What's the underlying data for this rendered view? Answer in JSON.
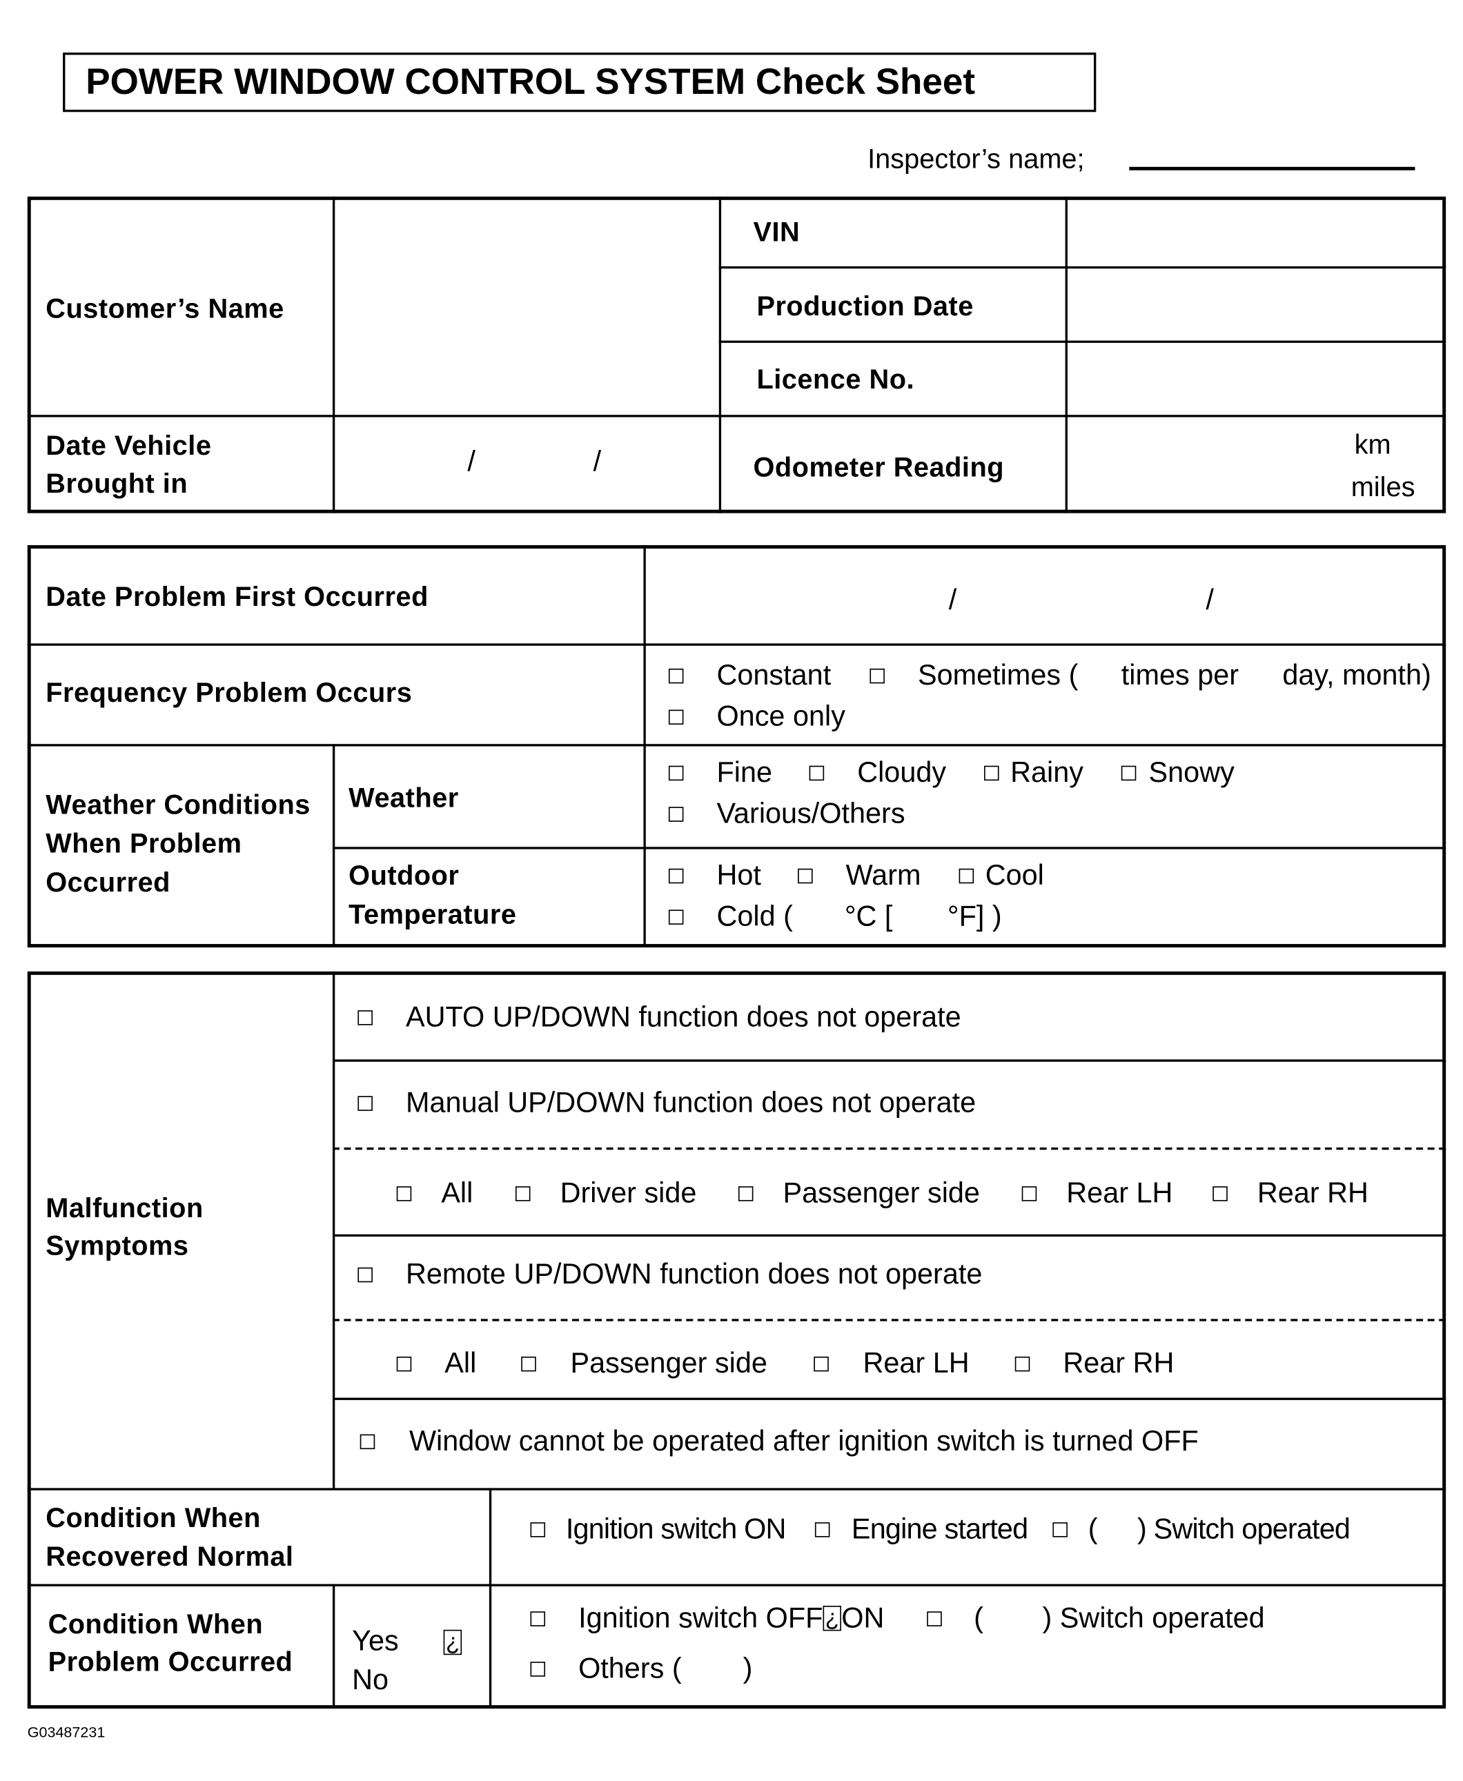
{
  "title": "POWER WINDOW CONTROL SYSTEM Check Sheet",
  "inspector_label": "Inspector’s name;",
  "vehicle": {
    "customer_name": "Customer’s Name",
    "vin": "VIN",
    "production_date": "Production Date",
    "licence_no": "Licence No.",
    "date_brought_in_1": "Date Vehicle",
    "date_brought_in_2": "Brought in",
    "date_sep": "/",
    "odometer": "Odometer Reading",
    "km": "km",
    "miles": "miles"
  },
  "problem": {
    "date_first": "Date Problem First Occurred",
    "date_sep": "/",
    "frequency": "Frequency Problem Occurs",
    "constant": "Constant",
    "sometimes": "Sometimes (",
    "times_per": "times per",
    "day_month": "day, month)",
    "once_only": "Once only",
    "weather_cond_1": "Weather Conditions",
    "weather_cond_2": "When Problem",
    "weather_cond_3": "Occurred",
    "weather": "Weather",
    "fine": "Fine",
    "cloudy": "Cloudy",
    "rainy": "Rainy",
    "snowy": "Snowy",
    "various": "Various/Others",
    "outdoor_1": "Outdoor",
    "outdoor_2": "Temperature",
    "hot": "Hot",
    "warm": "Warm",
    "cool": "Cool",
    "cold": "Cold (",
    "deg_c": "°C [",
    "deg_f": "°F] )"
  },
  "symptoms": {
    "label_1": "Malfunction",
    "label_2": "Symptoms",
    "auto": "AUTO UP/DOWN function does not operate",
    "manual": "Manual UP/DOWN function does not operate",
    "manual_opts": [
      "All",
      "Driver side",
      "Passenger side",
      "Rear LH",
      "Rear RH"
    ],
    "remote": "Remote UP/DOWN function does not operate",
    "remote_opts": [
      "All",
      "Passenger side",
      "Rear LH",
      "Rear RH"
    ],
    "ignition_off": "Window cannot be operated after ignition switch is turned OFF"
  },
  "recovered": {
    "label_1": "Condition When",
    "label_2": "Recovered Normal",
    "ignition_on": "Ignition switch ON",
    "engine_started": "Engine started",
    "paren_open": "(",
    "switch_operated": ") Switch operated"
  },
  "occurred": {
    "label_1": "Condition When",
    "label_2": "Problem Occurred",
    "yes": "Yes",
    "no": "No",
    "glyph": "¿",
    "ignition_a": "Ignition switch OFF",
    "ignition_b": "ON",
    "paren_open": "(",
    "switch_operated": ") Switch operated",
    "others": "Others (",
    "others_close": ")"
  },
  "figure_id": "G03487231"
}
